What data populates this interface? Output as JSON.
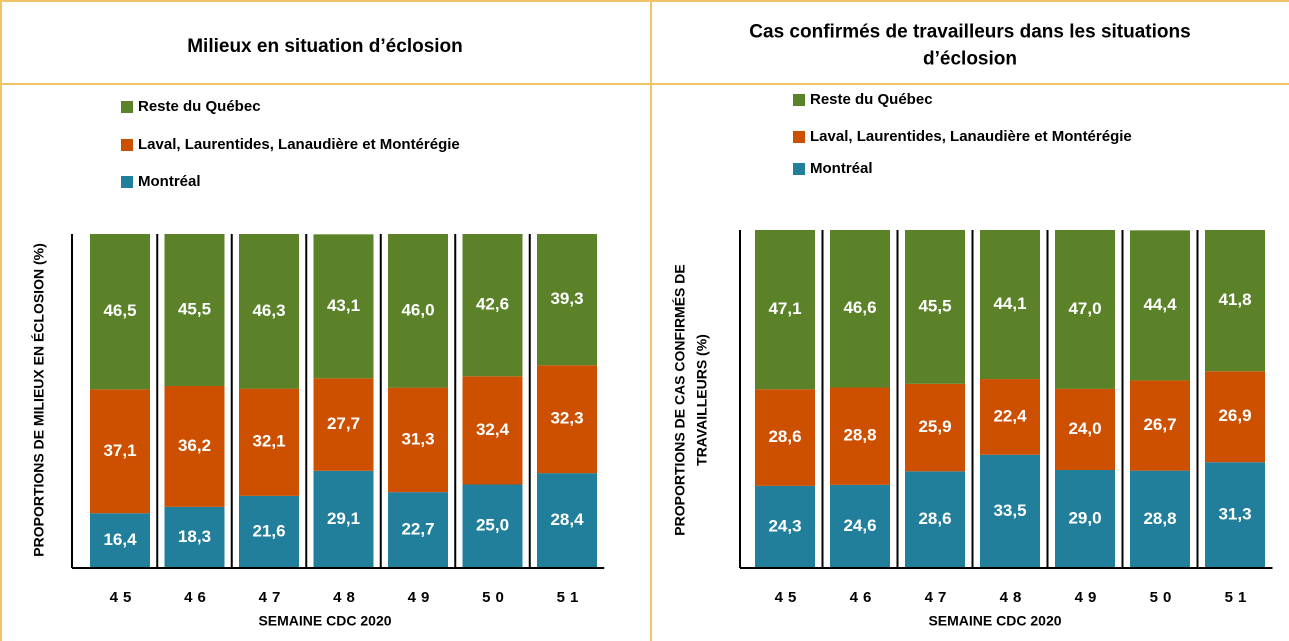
{
  "chart_data": [
    {
      "type": "bar",
      "stacked": true,
      "title": "Milieux en situation d’éclosion",
      "ylabel": "PROPORTIONS DE MILIEUX EN ÉCLOSION (%)",
      "xlabel": "SEMAINE CDC 2020",
      "categories": [
        "45",
        "46",
        "47",
        "48",
        "49",
        "50",
        "51"
      ],
      "ylim": [
        0,
        100
      ],
      "series": [
        {
          "name": "Montréal",
          "color": "#217f9c",
          "values": [
            16.4,
            18.3,
            21.6,
            29.1,
            22.7,
            25.0,
            28.4
          ],
          "value_labels": [
            "16,4",
            "18,3",
            "21,6",
            "29,1",
            "22,7",
            "25,0",
            "28,4"
          ]
        },
        {
          "name": "Laval, Laurentides, Lanaudière et Montérégie",
          "color": "#cc5000",
          "values": [
            37.1,
            36.2,
            32.1,
            27.7,
            31.3,
            32.4,
            32.3
          ],
          "value_labels": [
            "37,1",
            "36,2",
            "32,1",
            "27,7",
            "31,3",
            "32,4",
            "32,3"
          ]
        },
        {
          "name": "Reste du Québec",
          "color": "#5b8228",
          "values": [
            46.5,
            45.5,
            46.3,
            43.1,
            46.0,
            42.6,
            39.3
          ],
          "value_labels": [
            "46,5",
            "45,5",
            "46,3",
            "43,1",
            "46,0",
            "42,6",
            "39,3"
          ]
        }
      ]
    },
    {
      "type": "bar",
      "stacked": true,
      "title": [
        "Cas confirmés de travailleurs dans les situations",
        "d’éclosion"
      ],
      "ylabel": [
        "PROPORTIONS DE CAS CONFIRMÉS DE",
        "TRAVAILLEURS (%)"
      ],
      "xlabel": "SEMAINE CDC 2020",
      "categories": [
        "45",
        "46",
        "47",
        "48",
        "49",
        "50",
        "51"
      ],
      "ylim": [
        0,
        100
      ],
      "series": [
        {
          "name": "Montréal",
          "color": "#217f9c",
          "values": [
            24.3,
            24.6,
            28.6,
            33.5,
            29.0,
            28.8,
            31.3
          ],
          "value_labels": [
            "24,3",
            "24,6",
            "28,6",
            "33,5",
            "29,0",
            "28,8",
            "31,3"
          ]
        },
        {
          "name": "Laval, Laurentides, Lanaudière et Montérégie",
          "color": "#cc5000",
          "values": [
            28.6,
            28.8,
            25.9,
            22.4,
            24.0,
            26.7,
            26.9
          ],
          "value_labels": [
            "28,6",
            "28,8",
            "25,9",
            "22,4",
            "24,0",
            "26,7",
            "26,9"
          ]
        },
        {
          "name": "Reste du Québec",
          "color": "#5b8228",
          "values": [
            47.1,
            46.6,
            45.5,
            44.1,
            47.0,
            44.4,
            41.8
          ],
          "value_labels": [
            "47,1",
            "46,6",
            "45,5",
            "44,1",
            "47,0",
            "44,4",
            "41,8"
          ]
        }
      ]
    }
  ]
}
